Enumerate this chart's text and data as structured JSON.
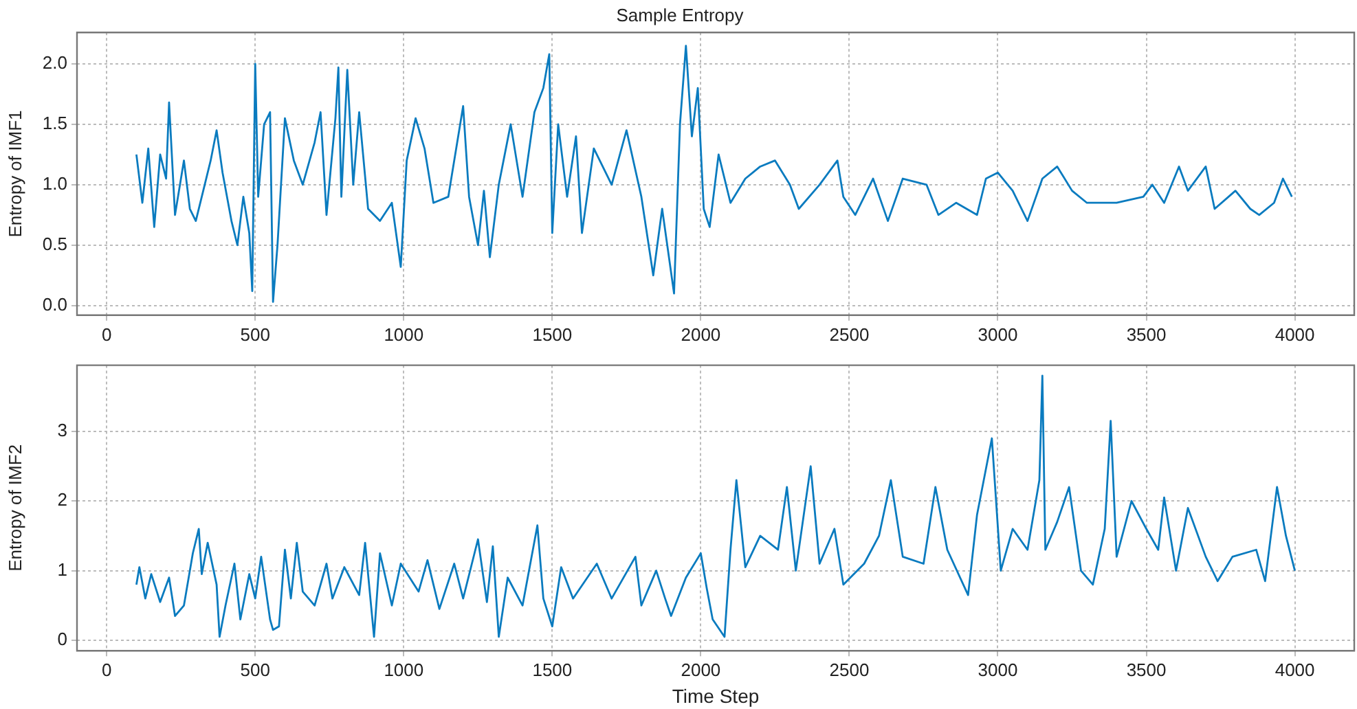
{
  "chart_data": [
    {
      "type": "line",
      "title": "Sample Entropy",
      "ylabel": "Entropy of IMF1",
      "xlim": [
        -100,
        4200
      ],
      "xticks": [
        0,
        500,
        1000,
        1500,
        2000,
        2500,
        3000,
        3500,
        4000
      ],
      "ylim": [
        -0.08,
        2.26
      ],
      "yticks": [
        {
          "value": 0,
          "label": "0.0"
        },
        0.5,
        {
          "value": 1,
          "label": "1.0"
        },
        1.5,
        {
          "value": 2,
          "label": "2.0"
        }
      ],
      "grid": true,
      "legend": false,
      "marker": "none",
      "line_style": "solid",
      "series": [
        {
          "color": "#0a7bbf",
          "x": [
            100,
            120,
            140,
            160,
            180,
            200,
            210,
            230,
            260,
            280,
            300,
            330,
            350,
            370,
            390,
            420,
            440,
            460,
            480,
            490,
            500,
            510,
            530,
            550,
            560,
            575,
            600,
            630,
            660,
            700,
            720,
            740,
            770,
            780,
            790,
            810,
            830,
            850,
            880,
            920,
            960,
            990,
            1010,
            1040,
            1070,
            1100,
            1150,
            1200,
            1220,
            1250,
            1270,
            1290,
            1320,
            1360,
            1400,
            1440,
            1470,
            1490,
            1500,
            1520,
            1550,
            1580,
            1600,
            1640,
            1700,
            1750,
            1800,
            1840,
            1870,
            1910,
            1930,
            1950,
            1970,
            1990,
            2010,
            2030,
            2060,
            2100,
            2150,
            2200,
            2250,
            2300,
            2330,
            2400,
            2460,
            2480,
            2520,
            2580,
            2630,
            2680,
            2760,
            2800,
            2860,
            2930,
            2960,
            3000,
            3050,
            3100,
            3150,
            3200,
            3250,
            3300,
            3400,
            3490,
            3520,
            3560,
            3610,
            3640,
            3700,
            3730,
            3800,
            3850,
            3880,
            3930,
            3960,
            3990
          ],
          "values": [
            1.25,
            0.85,
            1.3,
            0.65,
            1.25,
            1.05,
            1.68,
            0.75,
            1.2,
            0.8,
            0.7,
            1.0,
            1.2,
            1.45,
            1.1,
            0.7,
            0.5,
            0.9,
            0.6,
            0.12,
            2.0,
            0.9,
            1.5,
            1.6,
            0.03,
            0.5,
            1.55,
            1.2,
            1.0,
            1.35,
            1.6,
            0.75,
            1.55,
            1.97,
            0.9,
            1.95,
            1.0,
            1.6,
            0.8,
            0.7,
            0.85,
            0.32,
            1.2,
            1.55,
            1.3,
            0.85,
            0.9,
            1.65,
            0.9,
            0.5,
            0.95,
            0.4,
            1.0,
            1.5,
            0.9,
            1.6,
            1.8,
            2.08,
            0.6,
            1.5,
            0.9,
            1.4,
            0.6,
            1.3,
            1.0,
            1.45,
            0.9,
            0.25,
            0.8,
            0.1,
            1.5,
            2.15,
            1.4,
            1.8,
            0.8,
            0.65,
            1.25,
            0.85,
            1.05,
            1.15,
            1.2,
            1.0,
            0.8,
            1.0,
            1.2,
            0.9,
            0.75,
            1.05,
            0.7,
            1.05,
            1.0,
            0.75,
            0.85,
            0.75,
            1.05,
            1.1,
            0.95,
            0.7,
            1.05,
            1.15,
            0.95,
            0.85,
            0.85,
            0.9,
            1.0,
            0.85,
            1.15,
            0.95,
            1.15,
            0.8,
            0.95,
            0.8,
            0.75,
            0.85,
            1.05,
            0.9
          ]
        }
      ]
    },
    {
      "type": "line",
      "xlabel": "Time Step",
      "ylabel": "Entropy of IMF2",
      "xlim": [
        -100,
        4200
      ],
      "xticks": [
        0,
        500,
        1000,
        1500,
        2000,
        2500,
        3000,
        3500,
        4000
      ],
      "ylim": [
        -0.15,
        3.95
      ],
      "yticks": [
        0,
        1,
        2,
        3
      ],
      "grid": true,
      "legend": false,
      "marker": "none",
      "line_style": "solid",
      "series": [
        {
          "color": "#0a7bbf",
          "x": [
            100,
            110,
            130,
            150,
            180,
            210,
            230,
            260,
            290,
            310,
            320,
            340,
            370,
            380,
            400,
            430,
            450,
            480,
            500,
            520,
            550,
            560,
            580,
            600,
            620,
            640,
            660,
            700,
            740,
            760,
            800,
            850,
            870,
            900,
            920,
            960,
            990,
            1050,
            1080,
            1120,
            1170,
            1200,
            1250,
            1280,
            1300,
            1320,
            1350,
            1400,
            1450,
            1470,
            1500,
            1530,
            1570,
            1650,
            1700,
            1780,
            1800,
            1850,
            1880,
            1900,
            1950,
            2000,
            2020,
            2040,
            2080,
            2100,
            2120,
            2150,
            2200,
            2260,
            2290,
            2320,
            2370,
            2400,
            2450,
            2480,
            2550,
            2600,
            2640,
            2680,
            2750,
            2790,
            2830,
            2900,
            2930,
            2980,
            3010,
            3050,
            3100,
            3140,
            3150,
            3160,
            3200,
            3240,
            3280,
            3320,
            3360,
            3380,
            3400,
            3450,
            3500,
            3540,
            3560,
            3600,
            3640,
            3700,
            3740,
            3790,
            3870,
            3900,
            3940,
            3970,
            4000
          ],
          "values": [
            0.8,
            1.05,
            0.6,
            0.95,
            0.55,
            0.9,
            0.35,
            0.5,
            1.25,
            1.6,
            0.95,
            1.4,
            0.8,
            0.05,
            0.5,
            1.1,
            0.3,
            0.95,
            0.6,
            1.2,
            0.3,
            0.15,
            0.2,
            1.3,
            0.6,
            1.4,
            0.7,
            0.5,
            1.1,
            0.6,
            1.05,
            0.65,
            1.4,
            0.05,
            1.25,
            0.5,
            1.1,
            0.7,
            1.15,
            0.45,
            1.1,
            0.6,
            1.45,
            0.55,
            1.35,
            0.05,
            0.9,
            0.5,
            1.65,
            0.6,
            0.2,
            1.05,
            0.6,
            1.1,
            0.6,
            1.2,
            0.5,
            1.0,
            0.6,
            0.35,
            0.9,
            1.25,
            0.75,
            0.3,
            0.05,
            1.3,
            2.3,
            1.05,
            1.5,
            1.3,
            2.2,
            1.0,
            2.5,
            1.1,
            1.6,
            0.8,
            1.1,
            1.5,
            2.3,
            1.2,
            1.1,
            2.2,
            1.3,
            0.65,
            1.8,
            2.9,
            1.0,
            1.6,
            1.3,
            2.3,
            3.8,
            1.3,
            1.7,
            2.2,
            1.0,
            0.8,
            1.6,
            3.15,
            1.2,
            2.0,
            1.6,
            1.3,
            2.05,
            1.0,
            1.9,
            1.2,
            0.85,
            1.2,
            1.3,
            0.85,
            2.2,
            1.5,
            1.0
          ]
        }
      ]
    }
  ]
}
